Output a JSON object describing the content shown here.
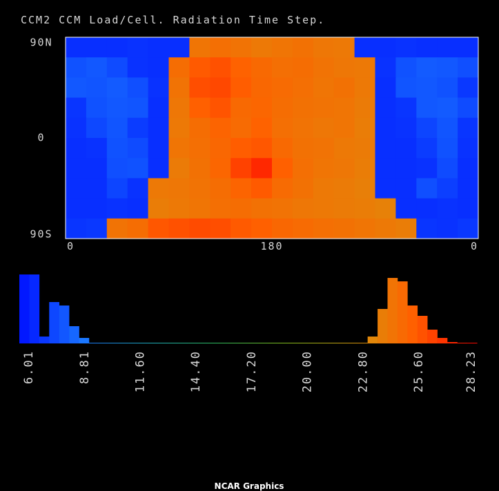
{
  "footer": "NCAR Graphics",
  "chart_data": [
    {
      "type": "heatmap",
      "title": "CCM2 CCM Load/Cell.  Radiation Time Step.",
      "xlim": [
        0,
        360
      ],
      "xticks": [
        0,
        180,
        {
          "value": 360,
          "label": "0"
        }
      ],
      "ylim": [
        -90,
        90
      ],
      "yticks": [
        {
          "value": 90,
          "label": "90N"
        },
        0,
        {
          "value": -90,
          "label": "90S"
        }
      ],
      "zlim": [
        5.52,
        28.58
      ],
      "colors": [
        "#0010ff",
        "#1a78ff",
        "#20b0c0",
        "#30c060",
        "#80c020",
        "#d0a010",
        "#ff6000",
        "#ff0000"
      ],
      "z": [
        [
          6.5,
          6.5,
          6.5,
          6.6,
          6.5,
          6.5,
          24.2,
          24.5,
          24.3,
          24.0,
          24.2,
          24.4,
          24.1,
          24.0,
          6.5,
          6.5,
          6.6,
          6.5,
          6.5,
          6.5
        ],
        [
          7.6,
          7.8,
          7.4,
          6.6,
          6.5,
          24.6,
          25.5,
          25.8,
          25.2,
          24.8,
          24.5,
          24.6,
          24.3,
          24.1,
          24.0,
          6.6,
          7.6,
          7.9,
          7.8,
          7.5
        ],
        [
          7.8,
          7.7,
          7.9,
          7.5,
          6.6,
          24.3,
          25.9,
          26.1,
          25.4,
          24.9,
          24.7,
          24.5,
          24.2,
          24.4,
          24.0,
          6.5,
          7.7,
          7.8,
          7.6,
          6.8
        ],
        [
          6.7,
          7.6,
          7.8,
          7.7,
          6.5,
          24.1,
          25.3,
          25.7,
          24.8,
          25.0,
          24.6,
          24.4,
          24.3,
          24.2,
          23.9,
          6.5,
          6.7,
          7.8,
          7.9,
          7.4
        ],
        [
          6.6,
          7.3,
          7.7,
          6.9,
          6.5,
          24.0,
          24.6,
          25.1,
          24.7,
          25.2,
          24.5,
          24.3,
          24.1,
          24.2,
          23.8,
          6.5,
          6.6,
          7.2,
          7.7,
          6.7
        ],
        [
          6.5,
          6.6,
          7.6,
          7.4,
          6.5,
          24.2,
          24.5,
          24.9,
          25.4,
          25.6,
          24.8,
          24.4,
          24.3,
          24.0,
          23.9,
          6.5,
          6.5,
          6.9,
          7.6,
          6.6
        ],
        [
          6.5,
          6.5,
          7.5,
          7.6,
          6.5,
          23.9,
          24.4,
          25.0,
          26.3,
          27.2,
          25.3,
          24.5,
          24.2,
          24.1,
          23.8,
          6.5,
          6.5,
          6.6,
          7.4,
          6.5
        ],
        [
          6.5,
          6.5,
          7.2,
          6.6,
          24.0,
          24.1,
          24.3,
          24.6,
          25.1,
          25.5,
          24.7,
          24.4,
          24.0,
          23.9,
          23.7,
          6.5,
          6.5,
          7.5,
          7.0,
          6.5
        ],
        [
          6.5,
          6.5,
          6.6,
          6.5,
          23.8,
          24.0,
          24.2,
          24.5,
          24.6,
          24.4,
          24.3,
          24.1,
          24.0,
          23.9,
          23.8,
          23.6,
          6.5,
          6.5,
          6.6,
          6.5
        ],
        [
          6.7,
          6.8,
          24.3,
          24.6,
          25.6,
          25.8,
          26.0,
          25.9,
          25.5,
          25.3,
          24.9,
          24.7,
          24.5,
          24.4,
          24.2,
          24.0,
          23.8,
          6.7,
          6.6,
          6.8
        ]
      ]
    },
    {
      "type": "histogram",
      "xlim": [
        5.52,
        28.58
      ],
      "ylim": [
        0,
        100
      ],
      "xticks": [
        6.01,
        8.81,
        {
          "value": 11.6,
          "label": "11.60"
        },
        {
          "value": 14.4,
          "label": "14.40"
        },
        {
          "value": 17.2,
          "label": "17.20"
        },
        {
          "value": 20,
          "label": "20.00"
        },
        {
          "value": 22.8,
          "label": "22.80"
        },
        {
          "value": 25.6,
          "label": "25.60"
        },
        28.23
      ],
      "colors": [
        "#0010ff",
        "#1a78ff",
        "#20b0c0",
        "#30c060",
        "#80c020",
        "#d0a010",
        "#ff6000",
        "#ff0000"
      ],
      "bins": [
        5.52,
        6.02,
        6.52,
        7.02,
        7.52,
        8.02,
        8.52,
        9.02,
        9.52,
        10.02,
        10.52,
        11.02,
        11.52,
        12.02,
        12.52,
        13.02,
        13.52,
        14.02,
        14.52,
        15.02,
        15.52,
        16.02,
        16.52,
        17.02,
        17.52,
        18.02,
        18.52,
        19.02,
        19.52,
        20.02,
        20.52,
        21.02,
        21.52,
        22.02,
        22.52,
        23.02,
        23.52,
        24.02,
        24.52,
        25.02,
        25.52,
        26.02,
        26.52,
        27.02,
        27.52,
        28.02,
        28.52
      ],
      "counts": [
        100,
        100,
        10,
        60,
        55,
        25,
        8,
        0.5,
        0.5,
        0.5,
        0.5,
        0.5,
        0.5,
        0.5,
        0.5,
        0.5,
        0.5,
        0.5,
        0.5,
        0.5,
        0.5,
        0.5,
        0.5,
        0.5,
        0.5,
        0.5,
        0.5,
        0.5,
        0.5,
        0.5,
        0.5,
        0.5,
        0.5,
        0.5,
        0.5,
        10,
        50,
        95,
        90,
        55,
        40,
        20,
        8,
        2,
        0.5,
        0.5
      ]
    }
  ]
}
